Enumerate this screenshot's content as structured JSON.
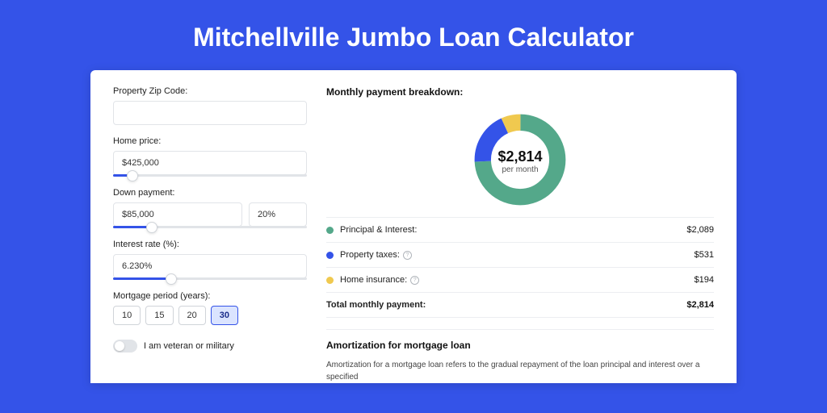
{
  "page": {
    "title": "Mitchellville Jumbo Loan Calculator",
    "background_color": "#3453e8"
  },
  "form": {
    "zip": {
      "label": "Property Zip Code:",
      "value": ""
    },
    "home_price": {
      "label": "Home price:",
      "value": "$425,000",
      "slider_pct": 10
    },
    "down_payment": {
      "label": "Down payment:",
      "amount": "$85,000",
      "pct": "20%",
      "slider_pct": 20
    },
    "interest_rate": {
      "label": "Interest rate (%):",
      "value": "6.230%",
      "slider_pct": 30
    },
    "mortgage_period": {
      "label": "Mortgage period (years):",
      "options": [
        "10",
        "15",
        "20",
        "30"
      ],
      "selected": "30"
    },
    "veteran": {
      "label": "I am veteran or military",
      "checked": false
    }
  },
  "breakdown": {
    "title": "Monthly payment breakdown:",
    "donut": {
      "center_amount": "$2,814",
      "center_sub": "per month",
      "slices": [
        {
          "label": "Principal & Interest",
          "color": "#54a88a",
          "value": 2089,
          "pct": 74.2
        },
        {
          "label": "Property taxes",
          "color": "#3453e8",
          "value": 531,
          "pct": 18.9
        },
        {
          "label": "Home insurance",
          "color": "#f0c94f",
          "value": 194,
          "pct": 6.9
        }
      ],
      "ring_width": 18
    },
    "rows": [
      {
        "dot": "#54a88a",
        "label": "Principal & Interest:",
        "info": false,
        "value": "$2,089"
      },
      {
        "dot": "#3453e8",
        "label": "Property taxes:",
        "info": true,
        "value": "$531"
      },
      {
        "dot": "#f0c94f",
        "label": "Home insurance:",
        "info": true,
        "value": "$194"
      }
    ],
    "total": {
      "label": "Total monthly payment:",
      "value": "$2,814"
    }
  },
  "amortization": {
    "title": "Amortization for mortgage loan",
    "text": "Amortization for a mortgage loan refers to the gradual repayment of the loan principal and interest over a specified"
  }
}
